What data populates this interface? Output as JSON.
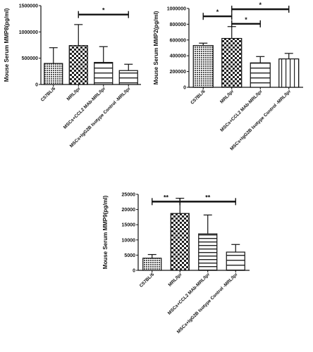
{
  "chart_data": [
    {
      "type": "bar",
      "ylabel": "Mouse Serum MMP8(pg/ml)",
      "ylim": [
        0,
        1500000
      ],
      "yticks": [
        0,
        500000,
        1000000,
        1500000
      ],
      "categories": [
        "C57BL/6",
        "MRL/lpr",
        "MSCs+CCL2 MAb-MRL/lpr",
        "MSCs+IgG2B Isotype Control -MRL/lpr"
      ],
      "values": [
        400000,
        740000,
        420000,
        265000
      ],
      "errors": [
        300000,
        400000,
        300000,
        120000
      ],
      "patterns": [
        "dots",
        "checker",
        "hlines-sparse",
        "hlines-sparse"
      ],
      "significance": [
        {
          "from": 1,
          "to": 3,
          "label": "*"
        }
      ]
    },
    {
      "type": "bar",
      "ylabel": "Mouse Serum MMP2(pg/ml)",
      "ylim": [
        0,
        1000000
      ],
      "yticks": [
        0,
        200000,
        400000,
        600000,
        800000,
        1000000
      ],
      "categories": [
        "C57BL/6",
        "MRL/lpr",
        "MSCs+CCL2 MAb-MRL/lpr",
        "MSCs+IgG2B Isotype Control -MRL/lpr"
      ],
      "values": [
        530000,
        620000,
        310000,
        360000
      ],
      "errors": [
        30000,
        150000,
        80000,
        70000
      ],
      "patterns": [
        "dots",
        "checker",
        "hlines-sparse",
        "vlines"
      ],
      "significance": [
        {
          "from": 0,
          "to": 1,
          "label": "*"
        },
        {
          "from": 1,
          "to": 3,
          "label": "*"
        },
        {
          "from": 1,
          "to": 2,
          "label": "*"
        }
      ]
    },
    {
      "type": "bar",
      "ylabel": "Mouse Serum MMP9(pg/ml)",
      "ylim": [
        0,
        25000
      ],
      "yticks": [
        0,
        5000,
        10000,
        15000,
        20000,
        25000
      ],
      "categories": [
        "C57BL/6",
        "MRL/lpr",
        "MSCs+CCL2 MAb-MRL/lpr",
        "MSCs+IgG2B Isotype Control -MRL/lpr"
      ],
      "values": [
        4000,
        18700,
        12000,
        6000
      ],
      "errors": [
        1200,
        5000,
        6200,
        2500
      ],
      "patterns": [
        "dots",
        "checker",
        "hlines-dense",
        "hlines-sparse"
      ],
      "significance": [
        {
          "from": 0,
          "to": 1,
          "label": "**"
        },
        {
          "from": 1,
          "to": 3,
          "label": "**"
        }
      ]
    }
  ]
}
